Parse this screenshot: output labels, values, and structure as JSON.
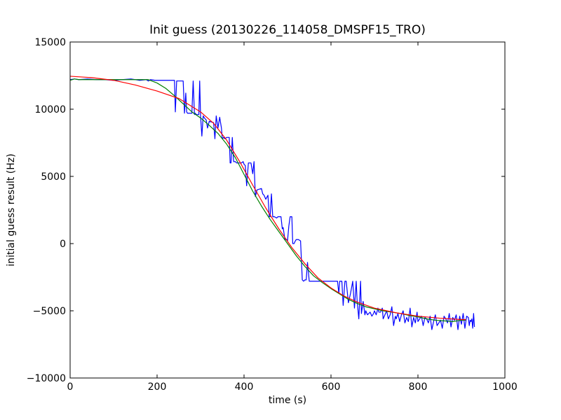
{
  "chart_data": {
    "type": "line",
    "title": "Init guess (20130226_114058_DMSPF15_TRO)",
    "xlabel": "time (s)",
    "ylabel": "initial guess result (Hz)",
    "xlim": [
      0,
      1000
    ],
    "ylim": [
      -10000,
      15000
    ],
    "x_ticks": [
      0,
      200,
      400,
      600,
      800,
      1000
    ],
    "y_ticks": [
      -10000,
      -5000,
      0,
      5000,
      10000,
      15000
    ],
    "grid": false,
    "legend": "none",
    "series": [
      {
        "color": "#0000ff",
        "x": [
          0,
          10,
          20,
          40,
          60,
          80,
          100,
          120,
          140,
          160,
          175,
          180,
          185,
          195,
          200,
          240,
          242,
          245,
          248,
          250,
          260,
          263,
          266,
          268,
          270,
          280,
          283,
          286,
          288,
          290,
          296,
          298,
          300,
          303,
          306,
          308,
          310,
          313,
          316,
          320,
          330,
          333,
          336,
          340,
          344,
          348,
          350,
          353,
          356,
          360,
          366,
          368,
          370,
          373,
          376,
          380,
          383,
          386,
          390,
          394,
          398,
          400,
          403,
          406,
          410,
          416,
          420,
          423,
          426,
          430,
          440,
          443,
          446,
          450,
          455,
          458,
          460,
          463,
          466,
          470,
          475,
          478,
          480,
          485,
          488,
          490,
          494,
          498,
          500,
          503,
          506,
          510,
          512,
          515,
          518,
          520,
          525,
          530,
          534,
          537,
          540,
          543,
          546,
          550,
          553,
          556,
          560,
          580,
          600,
          610,
          612,
          615,
          618,
          620,
          622,
          625,
          628,
          632,
          635,
          640,
          645,
          650,
          654,
          658,
          660,
          664,
          668,
          670,
          674,
          678,
          680,
          684,
          690,
          694,
          698,
          700,
          704,
          708,
          710,
          714,
          718,
          720,
          724,
          728,
          732,
          736,
          740,
          744,
          748,
          750,
          754,
          758,
          762,
          766,
          770,
          774,
          778,
          782,
          786,
          790,
          794,
          798,
          800,
          804,
          808,
          812,
          816,
          820,
          824,
          828,
          832,
          836,
          840,
          844,
          848,
          852,
          856,
          860,
          864,
          868,
          872,
          876,
          880,
          884,
          888,
          892,
          896,
          900,
          904,
          908,
          912,
          916,
          918,
          920,
          922,
          924,
          926,
          928,
          930
        ],
        "y": [
          12200,
          12250,
          12200,
          12250,
          12200,
          12200,
          12150,
          12200,
          12250,
          12150,
          12200,
          12100,
          12200,
          12150,
          12150,
          12150,
          9800,
          12100,
          12100,
          12100,
          12100,
          9700,
          11200,
          9800,
          9700,
          9700,
          12100,
          9600,
          9700,
          9600,
          9600,
          12100,
          9500,
          8000,
          9500,
          9400,
          9300,
          9200,
          8600,
          9100,
          9000,
          7800,
          9500,
          8600,
          9400,
          8600,
          7800,
          7900,
          7800,
          7900,
          7900,
          6000,
          6000,
          7900,
          6100,
          6100,
          6000,
          6000,
          6000,
          6000,
          6100,
          5900,
          5800,
          4300,
          6000,
          6000,
          5200,
          6100,
          3500,
          4000,
          4100,
          3700,
          3600,
          3300,
          3600,
          2000,
          2000,
          3700,
          2000,
          2000,
          1900,
          2000,
          2000,
          2000,
          1100,
          1200,
          300,
          300,
          200,
          1300,
          2000,
          2000,
          0,
          0,
          200,
          300,
          300,
          200,
          -2700,
          -2800,
          -2700,
          -2700,
          -1400,
          -2800,
          -2800,
          -2800,
          -2800,
          -2800,
          -2800,
          -2800,
          -2800,
          -2800,
          -3700,
          -2800,
          -2800,
          -2800,
          -4600,
          -2800,
          -2800,
          -4400,
          -3700,
          -2800,
          -4800,
          -2800,
          -4200,
          -5600,
          -2800,
          -5200,
          -4300,
          -5300,
          -5000,
          -5300,
          -5100,
          -5400,
          -5200,
          -5000,
          -5300,
          -4800,
          -5100,
          -5100,
          -4800,
          -5600,
          -5300,
          -5000,
          -5600,
          -5300,
          -4700,
          -6100,
          -5400,
          -5600,
          -5200,
          -5800,
          -5300,
          -5000,
          -5900,
          -5500,
          -5800,
          -4800,
          -6200,
          -5500,
          -5900,
          -5100,
          -5800,
          -5600,
          -5400,
          -6100,
          -5500,
          -5600,
          -5900,
          -5400,
          -6400,
          -5800,
          -5300,
          -6100,
          -5900,
          -5700,
          -6300,
          -5400,
          -5600,
          -5900,
          -5200,
          -6200,
          -5500,
          -5700,
          -5300,
          -6400,
          -5400,
          -6000,
          -5200,
          -6300,
          -5400,
          -5500,
          -6100,
          -5700,
          -5800,
          -5600,
          -6300,
          -5200,
          -6200
        ]
      },
      {
        "color": "#008000",
        "x": [
          0,
          10,
          20,
          50,
          100,
          150,
          180,
          200,
          220,
          240,
          260,
          280,
          300,
          320,
          340,
          360,
          380,
          400,
          420,
          440,
          460,
          480,
          500,
          520,
          540,
          560,
          580,
          600,
          620,
          640,
          660,
          680,
          700,
          720,
          740,
          760,
          780,
          800,
          820,
          840,
          860,
          880,
          900,
          910
        ],
        "y": [
          12150,
          12250,
          12200,
          12200,
          12200,
          12200,
          12200,
          11950,
          11550,
          11000,
          10400,
          9800,
          9350,
          8800,
          8200,
          7400,
          6400,
          5150,
          3900,
          2800,
          1800,
          900,
          0,
          -900,
          -1700,
          -2400,
          -2900,
          -3350,
          -3750,
          -4150,
          -4450,
          -4700,
          -4850,
          -5000,
          -5100,
          -5200,
          -5350,
          -5450,
          -5600,
          -5700,
          -5750,
          -5800,
          -5700,
          -5700
        ]
      },
      {
        "color": "#ff0000",
        "x": [
          0,
          50,
          100,
          150,
          200,
          250,
          300,
          330,
          360,
          390,
          420,
          450,
          480,
          510,
          540,
          570,
          600,
          630,
          660,
          700,
          750,
          800,
          850,
          900,
          910
        ],
        "y": [
          12450,
          12350,
          12150,
          11800,
          11350,
          10800,
          9800,
          8950,
          7700,
          6100,
          4350,
          2650,
          1100,
          -300,
          -1500,
          -2550,
          -3300,
          -3900,
          -4350,
          -4800,
          -5150,
          -5400,
          -5550,
          -5650,
          -5650
        ]
      }
    ]
  }
}
